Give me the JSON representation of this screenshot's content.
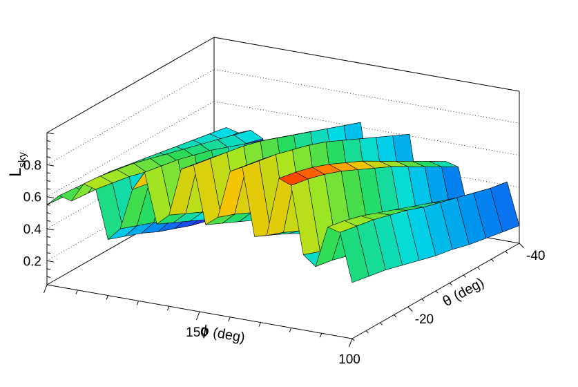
{
  "chart_data": {
    "type": "surface3d",
    "z_axis": {
      "label_main": "L",
      "label_sub": "sky",
      "range": [
        0.05,
        1.0
      ],
      "ticks": [
        0.2,
        0.4,
        0.6,
        0.8
      ],
      "tick_labels": [
        "0.2",
        "0.4",
        "0.6",
        "0.8"
      ],
      "grid": true
    },
    "x_axis": {
      "label_symbol": "ϕ",
      "label_unit": "(deg)",
      "range": [
        200,
        100
      ],
      "ticks": [
        150,
        100
      ],
      "tick_labels": [
        "150",
        "100"
      ]
    },
    "y_axis": {
      "label_symbol": "θ",
      "label_unit": "(deg)",
      "range": [
        -10,
        -40
      ],
      "ticks": [
        -20,
        -40
      ],
      "tick_labels": [
        "-20",
        "-40"
      ]
    },
    "surface": {
      "description_rows_theta": [
        -10,
        -13,
        -16,
        -19,
        -22,
        -25,
        -28,
        -31,
        -34,
        -37,
        -40
      ],
      "phi": [
        200,
        196,
        192,
        188,
        184,
        180,
        176,
        172,
        168,
        164,
        160,
        156,
        152,
        148,
        144,
        140,
        136,
        132,
        128,
        124,
        120,
        116,
        112,
        108,
        104,
        100
      ],
      "values": [
        [
          0.55,
          0.62,
          0.6,
          0.72,
          0.7,
          0.4,
          0.48,
          0.74,
          0.86,
          0.55,
          0.62,
          0.92,
          0.96,
          0.6,
          0.66,
          0.96,
          1.0,
          0.58,
          0.6,
          0.97,
          0.94,
          0.52,
          0.46,
          0.72,
          0.7,
          0.4
        ],
        [
          0.54,
          0.61,
          0.59,
          0.71,
          0.68,
          0.36,
          0.44,
          0.72,
          0.84,
          0.5,
          0.57,
          0.9,
          0.94,
          0.55,
          0.62,
          0.94,
          0.98,
          0.53,
          0.56,
          0.95,
          0.92,
          0.48,
          0.44,
          0.7,
          0.68,
          0.38
        ],
        [
          0.53,
          0.6,
          0.58,
          0.69,
          0.66,
          0.32,
          0.4,
          0.7,
          0.82,
          0.45,
          0.52,
          0.88,
          0.92,
          0.5,
          0.57,
          0.92,
          0.96,
          0.48,
          0.51,
          0.92,
          0.89,
          0.44,
          0.41,
          0.67,
          0.66,
          0.36
        ],
        [
          0.52,
          0.59,
          0.57,
          0.67,
          0.63,
          0.27,
          0.35,
          0.67,
          0.79,
          0.4,
          0.47,
          0.85,
          0.9,
          0.45,
          0.52,
          0.89,
          0.93,
          0.42,
          0.46,
          0.88,
          0.85,
          0.4,
          0.38,
          0.63,
          0.63,
          0.33
        ],
        [
          0.5,
          0.57,
          0.55,
          0.64,
          0.6,
          0.23,
          0.31,
          0.64,
          0.76,
          0.35,
          0.42,
          0.82,
          0.87,
          0.4,
          0.47,
          0.86,
          0.9,
          0.37,
          0.41,
          0.83,
          0.8,
          0.36,
          0.35,
          0.59,
          0.6,
          0.3
        ],
        [
          0.48,
          0.55,
          0.53,
          0.61,
          0.57,
          0.19,
          0.27,
          0.6,
          0.72,
          0.3,
          0.37,
          0.78,
          0.83,
          0.35,
          0.42,
          0.82,
          0.86,
          0.32,
          0.36,
          0.78,
          0.75,
          0.32,
          0.32,
          0.55,
          0.56,
          0.27
        ],
        [
          0.46,
          0.53,
          0.51,
          0.58,
          0.54,
          0.16,
          0.24,
          0.56,
          0.68,
          0.26,
          0.33,
          0.74,
          0.79,
          0.3,
          0.37,
          0.77,
          0.81,
          0.27,
          0.31,
          0.72,
          0.7,
          0.28,
          0.3,
          0.51,
          0.53,
          0.25
        ],
        [
          0.44,
          0.51,
          0.49,
          0.55,
          0.51,
          0.14,
          0.21,
          0.52,
          0.64,
          0.22,
          0.29,
          0.7,
          0.75,
          0.26,
          0.33,
          0.72,
          0.76,
          0.23,
          0.27,
          0.66,
          0.64,
          0.24,
          0.28,
          0.47,
          0.5,
          0.22
        ],
        [
          0.42,
          0.49,
          0.47,
          0.52,
          0.48,
          0.12,
          0.19,
          0.48,
          0.6,
          0.18,
          0.25,
          0.66,
          0.71,
          0.22,
          0.29,
          0.67,
          0.71,
          0.19,
          0.23,
          0.6,
          0.58,
          0.2,
          0.26,
          0.43,
          0.47,
          0.2
        ],
        [
          0.4,
          0.47,
          0.45,
          0.49,
          0.45,
          0.1,
          0.17,
          0.44,
          0.56,
          0.15,
          0.21,
          0.62,
          0.67,
          0.18,
          0.25,
          0.62,
          0.66,
          0.15,
          0.19,
          0.54,
          0.52,
          0.17,
          0.24,
          0.4,
          0.44,
          0.18
        ],
        [
          0.38,
          0.45,
          0.43,
          0.46,
          0.42,
          0.09,
          0.15,
          0.4,
          0.52,
          0.12,
          0.18,
          0.58,
          0.63,
          0.15,
          0.21,
          0.57,
          0.61,
          0.12,
          0.16,
          0.48,
          0.46,
          0.14,
          0.22,
          0.37,
          0.42,
          0.16
        ]
      ],
      "colormap": "rainbow"
    }
  }
}
